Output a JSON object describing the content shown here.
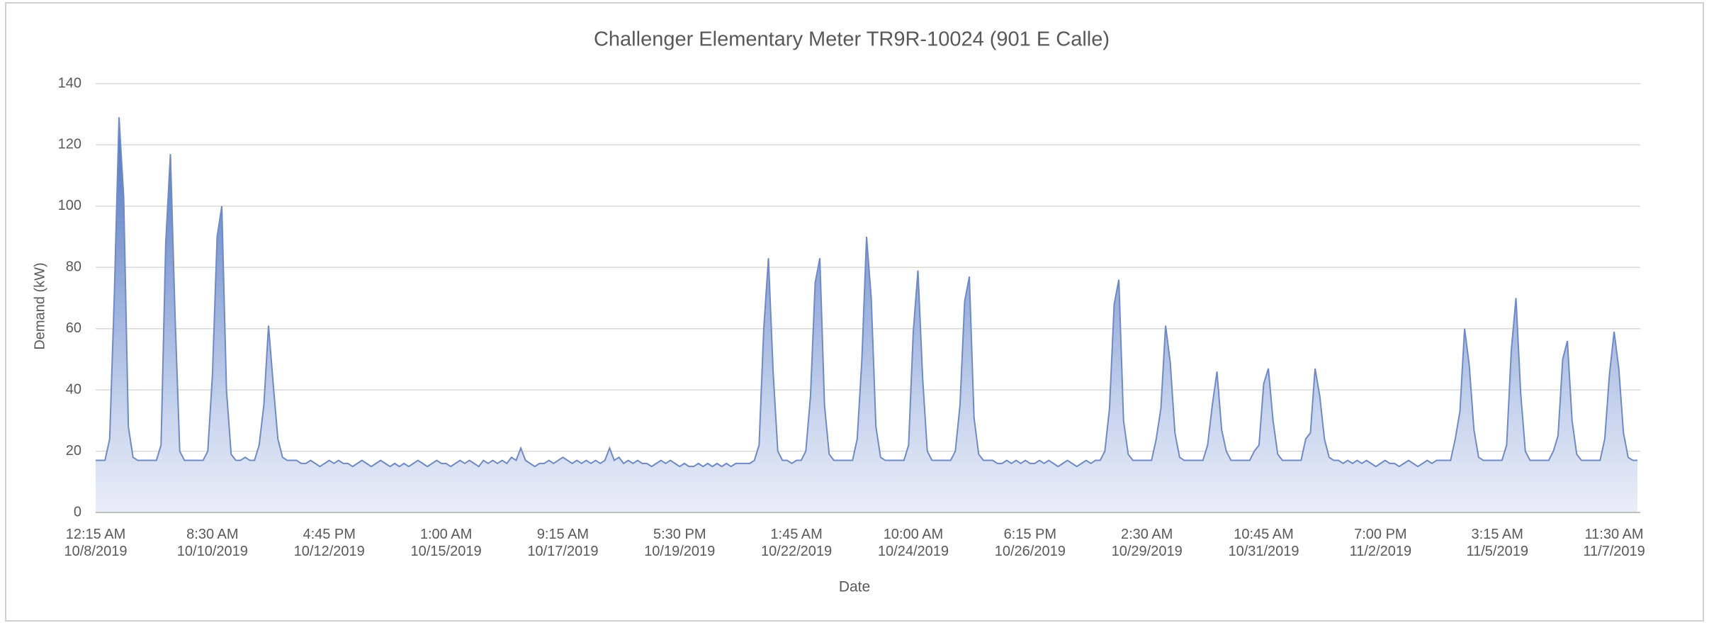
{
  "chart_data": {
    "type": "area",
    "title": "Challenger Elementary Meter TR9R-10024 (901 E Calle)",
    "x_label": "Date",
    "y_label": "Demand (kW)",
    "color": "#6f8ac4",
    "ylim": [
      0,
      140
    ],
    "yticks": [
      0,
      20,
      40,
      60,
      80,
      100,
      120,
      140
    ],
    "grid": true,
    "categories": [
      "12:15 AM\n10/8/2019",
      null,
      null,
      null,
      null,
      null,
      null,
      null,
      null,
      null,
      null,
      null,
      null,
      null,
      null,
      null,
      null,
      null,
      null,
      null,
      null,
      null,
      null,
      null,
      null,
      "8:30 AM\n10/10/2019",
      null,
      null,
      null,
      null,
      null,
      null,
      null,
      null,
      null,
      null,
      null,
      null,
      null,
      null,
      null,
      null,
      null,
      null,
      null,
      null,
      null,
      null,
      null,
      null,
      "4:45 PM\n10/12/2019",
      null,
      null,
      null,
      null,
      null,
      null,
      null,
      null,
      null,
      null,
      null,
      null,
      null,
      null,
      null,
      null,
      null,
      null,
      null,
      null,
      null,
      null,
      null,
      null,
      "1:00 AM\n10/15/2019",
      null,
      null,
      null,
      null,
      null,
      null,
      null,
      null,
      null,
      null,
      null,
      null,
      null,
      null,
      null,
      null,
      null,
      null,
      null,
      null,
      null,
      null,
      null,
      null,
      "9:15 AM\n10/17/2019",
      null,
      null,
      null,
      null,
      null,
      null,
      null,
      null,
      null,
      null,
      null,
      null,
      null,
      null,
      null,
      null,
      null,
      null,
      null,
      null,
      null,
      null,
      null,
      null,
      "5:30 PM\n10/19/2019",
      null,
      null,
      null,
      null,
      null,
      null,
      null,
      null,
      null,
      null,
      null,
      null,
      null,
      null,
      null,
      null,
      null,
      null,
      null,
      null,
      null,
      null,
      null,
      null,
      "1:45 AM\n10/22/2019",
      null,
      null,
      null,
      null,
      null,
      null,
      null,
      null,
      null,
      null,
      null,
      null,
      null,
      null,
      null,
      null,
      null,
      null,
      null,
      null,
      null,
      null,
      null,
      null,
      "10:00 AM\n10/24/2019",
      null,
      null,
      null,
      null,
      null,
      null,
      null,
      null,
      null,
      null,
      null,
      null,
      null,
      null,
      null,
      null,
      null,
      null,
      null,
      null,
      null,
      null,
      null,
      null,
      "6:15 PM\n10/26/2019",
      null,
      null,
      null,
      null,
      null,
      null,
      null,
      null,
      null,
      null,
      null,
      null,
      null,
      null,
      null,
      null,
      null,
      null,
      null,
      null,
      null,
      null,
      null,
      null,
      "2:30 AM\n10/29/2019",
      null,
      null,
      null,
      null,
      null,
      null,
      null,
      null,
      null,
      null,
      null,
      null,
      null,
      null,
      null,
      null,
      null,
      null,
      null,
      null,
      null,
      null,
      null,
      null,
      "10:45 AM\n10/31/2019",
      null,
      null,
      null,
      null,
      null,
      null,
      null,
      null,
      null,
      null,
      null,
      null,
      null,
      null,
      null,
      null,
      null,
      null,
      null,
      null,
      null,
      null,
      null,
      null,
      "7:00 PM\n11/2/2019",
      null,
      null,
      null,
      null,
      null,
      null,
      null,
      null,
      null,
      null,
      null,
      null,
      null,
      null,
      null,
      null,
      null,
      null,
      null,
      null,
      null,
      null,
      null,
      null,
      "3:15 AM\n11/5/2019",
      null,
      null,
      null,
      null,
      null,
      null,
      null,
      null,
      null,
      null,
      null,
      null,
      null,
      null,
      null,
      null,
      null,
      null,
      null,
      null,
      null,
      null,
      null,
      null,
      "11:30 AM\n11/7/2019",
      null,
      null,
      null,
      null,
      null
    ],
    "values": [
      17,
      17,
      17,
      24,
      71,
      129,
      103,
      28,
      18,
      17,
      17,
      17,
      17,
      17,
      22,
      88,
      117,
      64,
      20,
      17,
      17,
      17,
      17,
      17,
      20,
      45,
      90,
      100,
      40,
      19,
      17,
      17,
      18,
      17,
      17,
      22,
      35,
      61,
      42,
      24,
      18,
      17,
      17,
      17,
      16,
      16,
      17,
      16,
      15,
      16,
      17,
      16,
      17,
      16,
      16,
      15,
      16,
      17,
      16,
      15,
      16,
      17,
      16,
      15,
      16,
      15,
      16,
      15,
      16,
      17,
      16,
      15,
      16,
      17,
      16,
      16,
      15,
      16,
      17,
      16,
      17,
      16,
      15,
      17,
      16,
      17,
      16,
      17,
      16,
      18,
      17,
      21,
      17,
      16,
      15,
      16,
      16,
      17,
      16,
      17,
      18,
      17,
      16,
      17,
      16,
      17,
      16,
      17,
      16,
      17,
      21,
      17,
      18,
      16,
      17,
      16,
      17,
      16,
      16,
      15,
      16,
      17,
      16,
      17,
      16,
      15,
      16,
      15,
      15,
      16,
      15,
      16,
      15,
      16,
      15,
      16,
      15,
      16,
      16,
      16,
      16,
      17,
      22,
      60,
      83,
      46,
      20,
      17,
      17,
      16,
      17,
      17,
      20,
      38,
      75,
      83,
      35,
      19,
      17,
      17,
      17,
      17,
      17,
      24,
      50,
      90,
      70,
      28,
      18,
      17,
      17,
      17,
      17,
      17,
      22,
      59,
      79,
      44,
      20,
      17,
      17,
      17,
      17,
      17,
      20,
      35,
      69,
      77,
      31,
      19,
      17,
      17,
      17,
      16,
      16,
      17,
      16,
      17,
      16,
      17,
      16,
      16,
      17,
      16,
      17,
      16,
      15,
      16,
      17,
      16,
      15,
      16,
      17,
      16,
      17,
      17,
      20,
      34,
      68,
      76,
      30,
      19,
      17,
      17,
      17,
      17,
      17,
      24,
      34,
      61,
      49,
      26,
      18,
      17,
      17,
      17,
      17,
      17,
      22,
      35,
      46,
      27,
      20,
      17,
      17,
      17,
      17,
      17,
      20,
      22,
      42,
      47,
      30,
      19,
      17,
      17,
      17,
      17,
      17,
      24,
      26,
      47,
      38,
      24,
      18,
      17,
      17,
      16,
      17,
      16,
      17,
      16,
      17,
      16,
      15,
      16,
      17,
      16,
      16,
      15,
      16,
      17,
      16,
      15,
      16,
      17,
      16,
      17,
      17,
      17,
      17,
      24,
      33,
      60,
      48,
      27,
      18,
      17,
      17,
      17,
      17,
      17,
      22,
      53,
      70,
      39,
      20,
      17,
      17,
      17,
      17,
      17,
      20,
      25,
      50,
      56,
      30,
      19,
      17,
      17,
      17,
      17,
      17,
      24,
      45,
      59,
      47,
      26,
      18,
      17,
      17
    ]
  }
}
